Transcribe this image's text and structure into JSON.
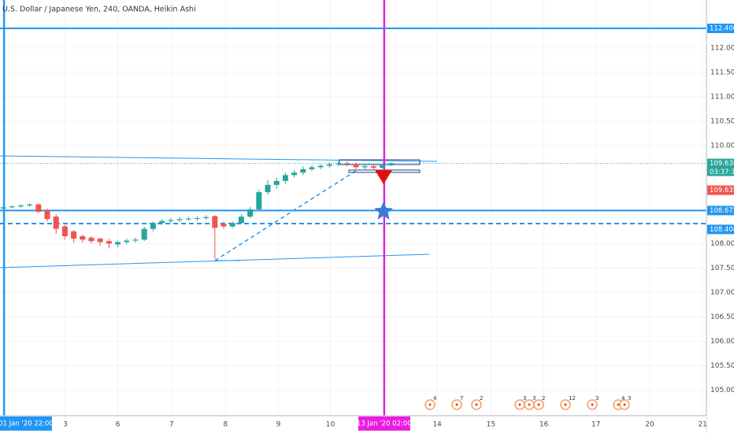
{
  "chart_data": {
    "type": "candlestick",
    "title": "U.S. Dollar / Japanese Yen, 240, OANDA, Heikin Ashi",
    "up_color": "#26a69a",
    "down_color": "#ef5350",
    "grid": true,
    "xlim": [
      -0.357,
      79.73
    ],
    "ylim": [
      104.48,
      112.98
    ],
    "yticks": [
      {
        "value": 112,
        "label": "112.000"
      },
      {
        "value": 111.5,
        "label": "111.500"
      },
      {
        "value": 111,
        "label": "111.000"
      },
      {
        "value": 110.5,
        "label": "110.500"
      },
      {
        "value": 110,
        "label": "110.000"
      },
      {
        "value": 108,
        "label": "108.000"
      },
      {
        "value": 107.5,
        "label": "107.500"
      },
      {
        "value": 107,
        "label": "107.000"
      },
      {
        "value": 106.5,
        "label": "106.500"
      },
      {
        "value": 106,
        "label": "106.000"
      },
      {
        "value": 105.5,
        "label": "105.500"
      },
      {
        "value": 105,
        "label": "105.000"
      }
    ],
    "xticks": [
      {
        "value": 0.1,
        "label": "01 Jan '20  22:00",
        "color": "#2196f3"
      },
      {
        "value": 7.05,
        "label": "3"
      },
      {
        "value": 13.0,
        "label": "6"
      },
      {
        "value": 19.1,
        "label": "7"
      },
      {
        "value": 25.2,
        "label": "8"
      },
      {
        "value": 31.2,
        "label": "9"
      },
      {
        "value": 37.1,
        "label": "10"
      },
      {
        "value": 43.2,
        "label": "13 Jan '20  02:00",
        "color": "#e91ee0"
      },
      {
        "value": 49.2,
        "label": "14"
      },
      {
        "value": 55.3,
        "label": "15"
      },
      {
        "value": 61.3,
        "label": "16"
      },
      {
        "value": 67.2,
        "label": "17"
      },
      {
        "value": 73.3,
        "label": "20"
      },
      {
        "value": 79.3,
        "label": "21"
      }
    ],
    "open": [
      108.72,
      108.74,
      108.76,
      108.78,
      108.8,
      108.68,
      108.55,
      108.35,
      108.25,
      108.15,
      108.12,
      108.1,
      108.05,
      107.98,
      108.03,
      108.06,
      108.08,
      108.3,
      108.42,
      108.46,
      108.48,
      108.5,
      108.51,
      108.52,
      108.56,
      108.4,
      108.35,
      108.42,
      108.55,
      108.7,
      109.05,
      109.2,
      109.28,
      109.4,
      109.45,
      109.52,
      109.56,
      109.59,
      109.62,
      109.64,
      109.62,
      109.56,
      109.58,
      109.55,
      109.6
    ],
    "high": [
      108.76,
      108.78,
      108.8,
      108.82,
      108.82,
      108.72,
      108.6,
      108.38,
      108.28,
      108.18,
      108.15,
      108.12,
      108.1,
      108.06,
      108.1,
      108.12,
      108.35,
      108.45,
      108.5,
      108.52,
      108.54,
      108.55,
      108.56,
      108.58,
      108.58,
      108.45,
      108.45,
      108.6,
      108.75,
      109.1,
      109.3,
      109.35,
      109.45,
      109.5,
      109.58,
      109.6,
      109.62,
      109.65,
      109.68,
      109.68,
      109.66,
      109.62,
      109.62,
      109.63,
      109.66
    ],
    "low": [
      108.7,
      108.72,
      108.73,
      108.75,
      108.62,
      108.45,
      108.2,
      108.08,
      108.02,
      108.02,
      108.0,
      107.95,
      107.9,
      107.92,
      107.98,
      108.02,
      108.05,
      108.25,
      108.38,
      108.42,
      108.44,
      108.46,
      108.47,
      108.48,
      107.68,
      108.3,
      108.32,
      108.4,
      108.52,
      108.68,
      109.0,
      109.12,
      109.22,
      109.35,
      109.4,
      109.48,
      109.52,
      109.55,
      109.58,
      109.58,
      109.52,
      109.52,
      109.5,
      109.53,
      109.58
    ],
    "close": [
      108.74,
      108.76,
      108.78,
      108.8,
      108.65,
      108.5,
      108.3,
      108.15,
      108.1,
      108.08,
      108.05,
      108.03,
      108.0,
      108.03,
      108.06,
      108.08,
      108.3,
      108.42,
      108.46,
      108.48,
      108.5,
      108.51,
      108.52,
      108.54,
      108.32,
      108.35,
      108.42,
      108.55,
      108.7,
      109.05,
      109.2,
      109.28,
      109.4,
      109.45,
      109.52,
      109.56,
      109.59,
      109.62,
      109.64,
      109.62,
      109.56,
      109.58,
      109.55,
      109.6,
      109.64
    ],
    "price_lines": [
      {
        "value": 112.4,
        "label": "112.400",
        "color": "#2196f3",
        "style": "solid"
      },
      {
        "value": 109.638,
        "label": "109.638",
        "color": "#26a69a",
        "style": "dotted",
        "countdown": "03:37:10"
      },
      {
        "value": 109.635,
        "label": "109.635",
        "color": "#ef5350",
        "style": "none"
      },
      {
        "value": 108.675,
        "label": "108.675",
        "color": "#2196f3",
        "style": "solid"
      },
      {
        "value": 108.408,
        "label": "108.408",
        "color": "#2196f3",
        "style": "dashed"
      }
    ],
    "events": [
      4,
      7,
      2,
      3,
      3,
      2,
      12,
      3,
      4,
      3
    ]
  }
}
